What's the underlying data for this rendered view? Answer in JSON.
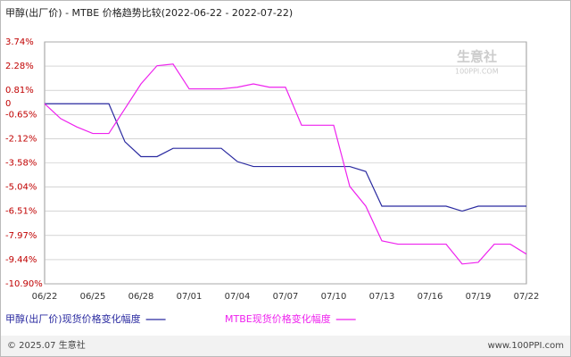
{
  "chart_data": {
    "type": "line",
    "title": "甲醇(出厂价) - MTBE 价格趋势比较(2022-06-22 - 2022-07-22)",
    "categories": [
      "06/22",
      null,
      null,
      "06/25",
      null,
      null,
      "06/28",
      null,
      null,
      "07/01",
      null,
      null,
      "07/04",
      null,
      null,
      "07/07",
      null,
      null,
      "07/10",
      null,
      null,
      "07/13",
      null,
      null,
      "07/16",
      null,
      null,
      "07/19",
      null,
      null,
      "07/22"
    ],
    "series": [
      {
        "name": "甲醇(出厂价)现货价格变化幅度",
        "color": "#2a2aa0",
        "values": [
          0,
          0,
          0,
          0,
          0,
          -2.3,
          -3.2,
          -3.2,
          -2.7,
          -2.7,
          -2.7,
          -2.7,
          -3.5,
          -3.8,
          -3.8,
          -3.8,
          -3.8,
          -3.8,
          -3.8,
          -3.8,
          -4.1,
          -6.2,
          -6.2,
          -6.2,
          -6.2,
          -6.2,
          -6.5,
          -6.2,
          -6.2,
          -6.2,
          -6.2
        ]
      },
      {
        "name": "MTBE现货价格变化幅度",
        "color": "#ee22ee",
        "values": [
          0,
          -0.9,
          -1.4,
          -1.8,
          -1.8,
          -0.3,
          1.2,
          2.3,
          2.4,
          0.9,
          0.9,
          0.9,
          1.0,
          1.2,
          1.0,
          1.0,
          -1.3,
          -1.3,
          -1.3,
          -5.0,
          -6.2,
          -8.3,
          -8.5,
          -8.5,
          -8.5,
          -8.5,
          -9.7,
          -9.6,
          -8.5,
          -8.5,
          -9.1
        ]
      }
    ],
    "ylim": [
      -10.9,
      3.74
    ],
    "yticks": [
      {
        "value": 3.74,
        "label": "3.74%"
      },
      {
        "value": 2.28,
        "label": "2.28%"
      },
      {
        "value": 0.81,
        "label": "0.81%"
      },
      0,
      {
        "value": -0.65,
        "label": "-0.65%"
      },
      {
        "value": -2.12,
        "label": "-2.12%"
      },
      {
        "value": -3.58,
        "label": "-3.58%"
      },
      {
        "value": -5.04,
        "label": "-5.04%"
      },
      {
        "value": -6.51,
        "label": "-6.51%"
      },
      {
        "value": -7.97,
        "label": "-7.97%"
      },
      {
        "value": -9.44,
        "label": "-9.44%"
      },
      {
        "value": -10.9,
        "label": "-10.90%"
      }
    ],
    "grid": true,
    "watermark": "生意社",
    "watermark_sub": "100PPI.COM",
    "footer_left": "© 2025.07 生意社",
    "footer_right": "www.100PPI.com"
  }
}
